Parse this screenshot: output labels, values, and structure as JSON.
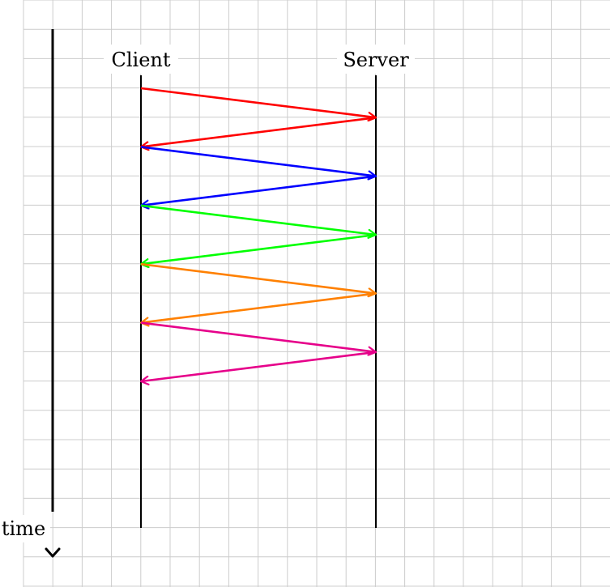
{
  "labels": {
    "client": "Client",
    "server": "Server",
    "time": "time"
  },
  "messages": [
    {
      "from": "client",
      "to": "server",
      "color": "#ff0000"
    },
    {
      "from": "server",
      "to": "client",
      "color": "#ff0000"
    },
    {
      "from": "client",
      "to": "server",
      "color": "#0000ff"
    },
    {
      "from": "server",
      "to": "client",
      "color": "#0000ff"
    },
    {
      "from": "client",
      "to": "server",
      "color": "#00ff00"
    },
    {
      "from": "server",
      "to": "client",
      "color": "#00ff00"
    },
    {
      "from": "client",
      "to": "server",
      "color": "#ff8000"
    },
    {
      "from": "server",
      "to": "client",
      "color": "#ff8000"
    },
    {
      "from": "client",
      "to": "server",
      "color": "#e6008a"
    },
    {
      "from": "server",
      "to": "client",
      "color": "#e6008a"
    }
  ],
  "colors": {
    "grid": "#cccccc",
    "lines": "#000000"
  }
}
